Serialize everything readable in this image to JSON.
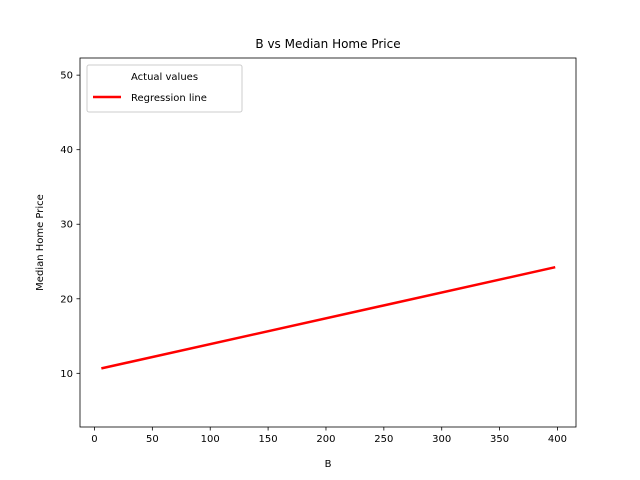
{
  "chart_data": {
    "type": "line",
    "title": "B vs Median Home Price",
    "xlabel": "B",
    "ylabel": "Median Home Price",
    "xlim": [
      -12.5,
      416
    ],
    "ylim": [
      2.8,
      52.3
    ],
    "xticks": [
      0,
      50,
      100,
      150,
      200,
      250,
      300,
      350,
      400
    ],
    "yticks": [
      10,
      20,
      30,
      40,
      50
    ],
    "grid": false,
    "legend_position": "upper-left",
    "series": [
      {
        "name": "Actual values",
        "kind": "scatter",
        "color": "#1f77b4",
        "x": [],
        "y": []
      },
      {
        "name": "Regression line",
        "kind": "line",
        "color": "#ff0000",
        "x": [
          7,
          397
        ],
        "y": [
          10.7,
          24.2
        ]
      }
    ]
  }
}
